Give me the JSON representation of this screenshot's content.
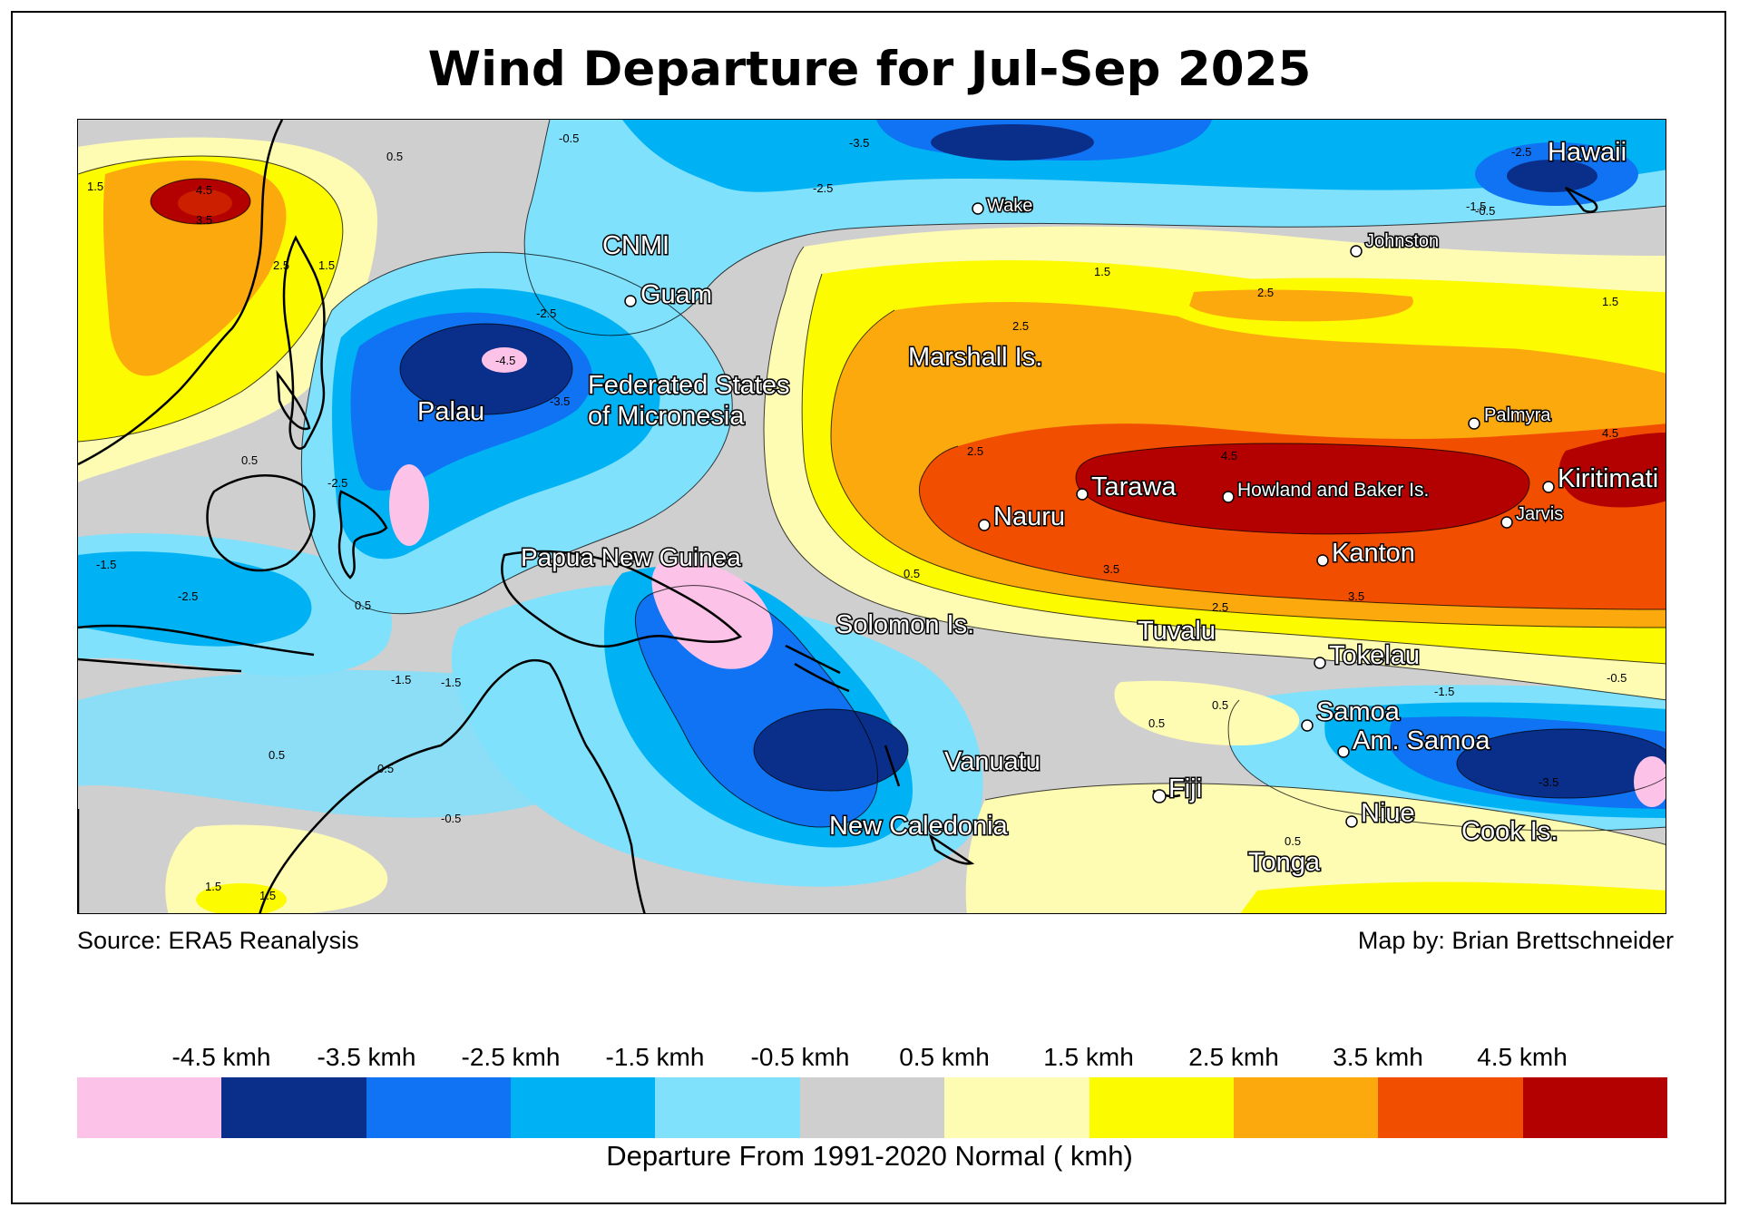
{
  "title": "Wind Departure for Jul-Sep 2025",
  "source": "Source: ERA5 Reanalysis",
  "credit": "Map by: Brian Brettschneider",
  "legend": {
    "title": "Departure From 1991-2020 Normal ( kmh)",
    "labels": [
      "-4.5 kmh",
      "-3.5 kmh",
      "-2.5 kmh",
      "-1.5 kmh",
      "-0.5 kmh",
      "0.5 kmh",
      "1.5 kmh",
      "2.5 kmh",
      "3.5 kmh",
      "4.5 kmh"
    ],
    "colors": [
      "#fcc2e8",
      "#0a2f8a",
      "#0f73f4",
      "#00b2f4",
      "#7fe1fc",
      "#cfcfcf",
      "#fefbb3",
      "#fdfb00",
      "#fca90e",
      "#f24e00",
      "#b30000"
    ]
  },
  "places": {
    "hawaii": "Hawaii",
    "wake": "Wake",
    "johnston": "Johnston",
    "cnmi": "CNMI",
    "guam": "Guam",
    "marshall": "Marshall Is.",
    "fsm": [
      "Federated States",
      "of Micronesia"
    ],
    "palau": "Palau",
    "palmyra": "Palmyra",
    "kiritimati": "Kiritimati",
    "tarawa": "Tarawa",
    "howland": "Howland and Baker Is.",
    "nauru": "Nauru",
    "jarvis": "Jarvis",
    "kanton": "Kanton",
    "png": "Papua New Guinea",
    "solomon": "Solomon Is.",
    "tuvalu": "Tuvalu",
    "tokelau": "Tokelau",
    "samoa": "Samoa",
    "am_samoa": "Am. Samoa",
    "vanuatu": "Vanuatu",
    "fiji": "Fiji",
    "niue": "Niue",
    "cook": "Cook Is.",
    "new_caledonia": "New Caledonia",
    "tonga": "Tonga"
  },
  "contour_labels": [
    "-0.5",
    "-1.5",
    "-2.5",
    "-3.5",
    "-4.5",
    "0.5",
    "1.5",
    "2.5",
    "3.5",
    "4.5"
  ]
}
